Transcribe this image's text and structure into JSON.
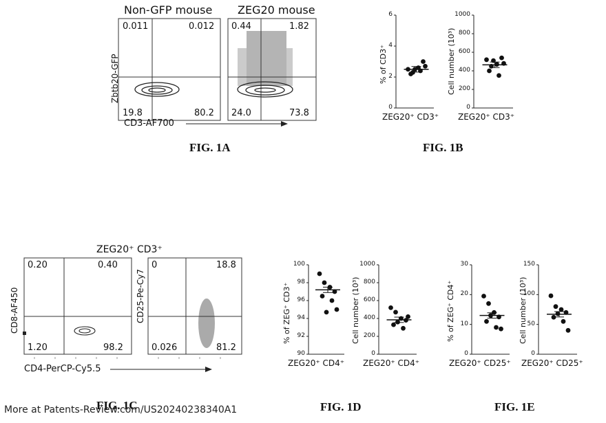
{
  "fig1a": {
    "label": "FIG. 1A",
    "panel_left_title": "Non-GFP mouse",
    "panel_right_title": "ZEG20 mouse",
    "y_axis": "Zbtb20-GFP",
    "x_axis": "CD3-AF700",
    "left_quadrants": {
      "ul": "0.011",
      "ur": "0.012",
      "ll": "19.8",
      "lr": "80.2"
    },
    "right_quadrants": {
      "ul": "0.44",
      "ur": "1.82",
      "ll": "24.0",
      "lr": "73.8"
    }
  },
  "fig1b": {
    "label": "FIG. 1B",
    "left": {
      "ylabel": "% of CD3⁺",
      "category": "ZEG20⁺ CD3⁺",
      "ticks": [
        "0",
        "2",
        "4",
        "6"
      ]
    },
    "right": {
      "ylabel": "Cell number (10³)",
      "category": "ZEG20⁺ CD3⁺",
      "ticks": [
        "0",
        "200",
        "400",
        "600",
        "800",
        "1000"
      ]
    }
  },
  "fig1c": {
    "label": "FIG. 1C",
    "title": "ZEG20⁺ CD3⁺",
    "left_y_axis": "CD8-AF450",
    "right_y_axis": "CD25-Pe-Cy7",
    "x_axis": "CD4-PerCP-Cy5.5",
    "left_quadrants": {
      "ul": "0.20",
      "ur": "0.40",
      "ll": "1.20",
      "lr": "98.2"
    },
    "right_quadrants": {
      "ul": "0",
      "ur": "18.8",
      "ll": "0.026",
      "lr": "81.2"
    }
  },
  "fig1d": {
    "label": "FIG. 1D",
    "left": {
      "ylabel": "% of ZEG⁺ CD3⁺",
      "category": "ZEG20⁺ CD4⁺",
      "ticks": [
        "90",
        "92",
        "94",
        "96",
        "98",
        "100"
      ]
    },
    "right": {
      "ylabel": "Cell number (10³)",
      "category": "ZEG20⁺ CD4⁺",
      "ticks": [
        "0",
        "200",
        "400",
        "600",
        "800",
        "1000"
      ]
    }
  },
  "fig1e": {
    "label": "FIG. 1E",
    "left": {
      "ylabel": "% of ZEG⁺ CD4⁺",
      "category": "ZEG20⁺ CD25⁺",
      "ticks": [
        "0",
        "10",
        "20",
        "30"
      ]
    },
    "right": {
      "ylabel": "Cell number (10³)",
      "category": "ZEG20⁺ CD25⁺",
      "ticks": [
        "0",
        "50",
        "100",
        "150"
      ]
    }
  },
  "chart_data": [
    {
      "type": "scatter",
      "id": "1B-left",
      "ylabel": "% of CD3⁺",
      "ylim": [
        0,
        6
      ],
      "category": "ZEG20⁺ CD3⁺",
      "values": [
        2.5,
        2.3,
        2.6,
        3.0,
        2.2,
        2.4,
        2.7,
        2.5
      ],
      "mean": 2.5
    },
    {
      "type": "scatter",
      "id": "1B-right",
      "ylabel": "Cell number (10³)",
      "ylim": [
        0,
        1000
      ],
      "category": "ZEG20⁺ CD3⁺",
      "values": [
        520,
        450,
        470,
        540,
        400,
        350,
        480,
        510
      ],
      "mean": 465
    },
    {
      "type": "scatter",
      "id": "1D-left",
      "ylabel": "% of ZEG⁺ CD3⁺",
      "ylim": [
        90,
        100
      ],
      "category": "ZEG20⁺ CD4⁺",
      "values": [
        99.0,
        98.0,
        97.5,
        97.0,
        96.5,
        96.0,
        95.0,
        94.7
      ],
      "mean": 97.2
    },
    {
      "type": "scatter",
      "id": "1D-right",
      "ylabel": "Cell number (10³)",
      "ylim": [
        0,
        1000
      ],
      "category": "ZEG20⁺ CD4⁺",
      "values": [
        520,
        470,
        400,
        380,
        330,
        290,
        420,
        360
      ],
      "mean": 385
    },
    {
      "type": "scatter",
      "id": "1E-left",
      "ylabel": "% of ZEG⁺ CD4⁺",
      "ylim": [
        0,
        30
      ],
      "category": "ZEG20⁺ CD25⁺",
      "values": [
        19.5,
        17.0,
        14.0,
        12.5,
        11.0,
        9.0,
        8.5,
        13.0
      ],
      "mean": 13.0
    },
    {
      "type": "scatter",
      "id": "1E-right",
      "ylabel": "Cell number (10³)",
      "ylim": [
        0,
        150
      ],
      "category": "ZEG20⁺ CD25⁺",
      "values": [
        98,
        80,
        75,
        70,
        62,
        55,
        40,
        68
      ],
      "mean": 67
    }
  ],
  "footer": {
    "watermark": "More at Patents-Review.com/US20240238340A1"
  }
}
